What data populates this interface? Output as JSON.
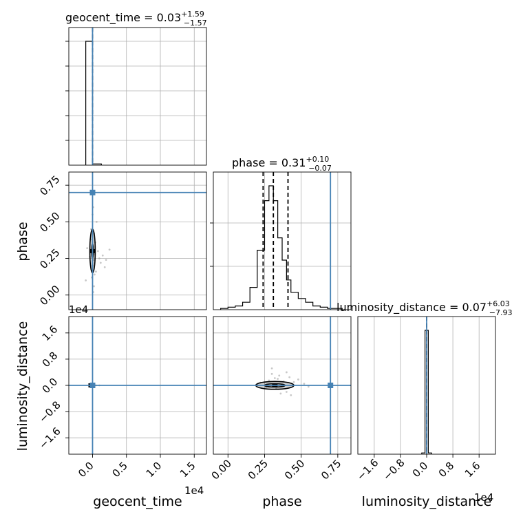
{
  "chart_data": {
    "type": "corner",
    "parameters": [
      "geocent_time",
      "phase",
      "luminosity_distance"
    ],
    "axis_offsets": {
      "geocent_time": "1e4",
      "luminosity_distance": "1e4"
    },
    "titles": {
      "geocent_time": {
        "name": "geocent_time",
        "median": "0.03",
        "plus": "+1.59",
        "minus": "−1.57"
      },
      "phase": {
        "name": "phase",
        "median": "0.31",
        "plus": "+0.10",
        "minus": "−0.07"
      },
      "luminosity_distance": {
        "name": "luminosity_distance",
        "median": "0.07",
        "plus": "+6.03",
        "minus": "−7.93"
      }
    },
    "truths": {
      "geocent_time": 0.0,
      "phase": 0.7,
      "luminosity_distance": 0.0
    },
    "ranges": {
      "geocent_time": [
        -0.35,
        1.68
      ],
      "phase": [
        -0.1,
        0.84
      ],
      "luminosity_distance": [
        -2.1,
        2.1
      ]
    },
    "ticks": {
      "geocent_time": {
        "values": [
          0.0,
          0.5,
          1.0,
          1.5
        ],
        "labels": [
          "0.0",
          "0.5",
          "1.0",
          "1.5"
        ]
      },
      "phase": {
        "values": [
          0.0,
          0.25,
          0.5,
          0.75
        ],
        "labels": [
          "0.00",
          "0.25",
          "0.50",
          "0.75"
        ]
      },
      "luminosity_distance": {
        "values": [
          -1.6,
          -0.8,
          0.0,
          0.8,
          1.6
        ],
        "labels": [
          "−1.6",
          "−0.8",
          "0.0",
          "0.8",
          "1.6"
        ]
      }
    },
    "histograms": {
      "geocent_time": {
        "edges": [
          -0.1,
          0.0,
          0.13
        ],
        "counts": [
          100,
          1
        ]
      },
      "phase": {
        "edges": [
          -0.05,
          0.0,
          0.05,
          0.1,
          0.15,
          0.2,
          0.25,
          0.28,
          0.31,
          0.34,
          0.37,
          0.4,
          0.43,
          0.48,
          0.53,
          0.58,
          0.63,
          0.68,
          0.73,
          0.78
        ],
        "counts": [
          1,
          2,
          3,
          6,
          18,
          48,
          88,
          100,
          88,
          58,
          40,
          24,
          14,
          9,
          6,
          3,
          2,
          1,
          1
        ]
      },
      "luminosity_distance": {
        "edges": [
          -0.15,
          -0.05,
          0.05,
          0.15
        ],
        "counts": [
          1,
          100,
          1
        ]
      }
    },
    "quantile_lines": {
      "geocent_time": [
        0.0
      ],
      "phase": [
        0.24,
        0.31,
        0.41
      ],
      "luminosity_distance": [
        0.0
      ]
    },
    "hist_y_ticks": {
      "geocent_time": [
        0.2,
        0.4,
        0.6,
        0.8,
        1.0
      ],
      "phase": [
        0.35,
        0.7
      ],
      "luminosity_distance": []
    },
    "scatter_samples": {
      "phase_vs_geocent_time": [
        [
          -0.02,
          0.45
        ],
        [
          0.02,
          0.42
        ],
        [
          -0.03,
          0.38
        ],
        [
          0.04,
          0.36
        ],
        [
          0.01,
          0.33
        ],
        [
          0.03,
          0.28
        ],
        [
          -0.04,
          0.26
        ],
        [
          0.02,
          0.24
        ],
        [
          0.0,
          0.2
        ],
        [
          0.05,
          0.16
        ],
        [
          -0.01,
          0.12
        ],
        [
          0.02,
          0.06
        ],
        [
          0.01,
          0.02
        ],
        [
          0.08,
          0.3
        ],
        [
          0.1,
          0.25
        ],
        [
          0.15,
          0.27
        ],
        [
          0.2,
          0.24
        ],
        [
          -0.08,
          0.32
        ],
        [
          0.0,
          0.55
        ],
        [
          0.01,
          0.6
        ],
        [
          0.06,
          0.5
        ],
        [
          0.03,
          0.14
        ],
        [
          0.12,
          0.22
        ],
        [
          0.25,
          0.31
        ],
        [
          0.18,
          0.19
        ],
        [
          -0.1,
          0.1
        ]
      ],
      "luminosity_distance_vs_geocent_time": [
        [
          -0.03,
          0.0
        ],
        [
          -0.02,
          -0.01
        ],
        [
          0.02,
          0.01
        ],
        [
          0.05,
          0.0
        ],
        [
          0.1,
          0.0
        ]
      ],
      "luminosity_distance_vs_phase": [
        [
          0.3,
          0.35
        ],
        [
          0.32,
          0.22
        ],
        [
          0.35,
          0.3
        ],
        [
          0.4,
          -0.2
        ],
        [
          0.45,
          0.1
        ],
        [
          0.28,
          0.15
        ],
        [
          0.36,
          -0.25
        ],
        [
          0.52,
          0.05
        ],
        [
          0.22,
          0.08
        ],
        [
          0.4,
          0.4
        ],
        [
          0.38,
          0.12
        ],
        [
          0.33,
          -0.1
        ],
        [
          0.43,
          -0.3
        ],
        [
          0.48,
          0.18
        ],
        [
          0.26,
          -0.05
        ],
        [
          0.3,
          0.52
        ],
        [
          0.55,
          -0.04
        ],
        [
          0.2,
          0.02
        ],
        [
          0.34,
          0.2
        ],
        [
          0.42,
          0.25
        ]
      ]
    },
    "contours": {
      "phase_vs_geocent_time": {
        "center": [
          0.0,
          0.3
        ],
        "inner": [
          0.012,
          0.05
        ],
        "outer": [
          0.04,
          0.15
        ]
      },
      "luminosity_distance_vs_phase": {
        "center": [
          0.32,
          0.0
        ],
        "inner": [
          0.07,
          0.05
        ],
        "outer": [
          0.13,
          0.12
        ]
      },
      "luminosity_distance_vs_geocent_time": {
        "center": [
          -0.02,
          0.0
        ],
        "inner": [
          0.015,
          0.02
        ],
        "outer": [
          0.03,
          0.04
        ]
      }
    }
  }
}
